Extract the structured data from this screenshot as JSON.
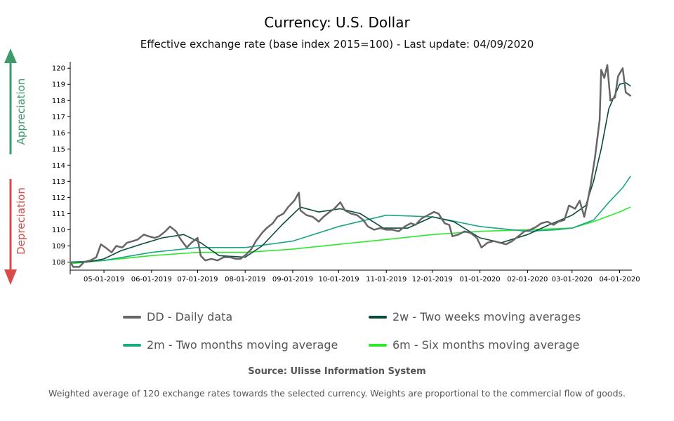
{
  "title": "Currency: U.S. Dollar",
  "subtitle": "Effective exchange rate (base index 2015=100) - Last update: 04/09/2020",
  "side_labels": {
    "appreciation": "Appreciation",
    "depreciation": "Depreciation"
  },
  "colors": {
    "appreciation": "#3d9a6a",
    "depreciation": "#d94b4b",
    "daily": "#666666",
    "two_weeks": "#0b4a3e",
    "two_months": "#1aa784",
    "six_months": "#2de82d"
  },
  "legend": [
    {
      "label": "DD - Daily data",
      "color": "#666666"
    },
    {
      "label": "2w - Two weeks moving averages",
      "color": "#0b4a3e"
    },
    {
      "label": "2m - Two months moving average",
      "color": "#1aa784"
    },
    {
      "label": "6m - Six months moving average",
      "color": "#2de82d"
    }
  ],
  "source": "Source: Ulisse Information System",
  "footnote": "Weighted average of 120 exchange rates towards the selected currency. Weights are proportional to the commercial flow of goods.",
  "chart_data": {
    "type": "line",
    "title": "Currency: U.S. Dollar",
    "subtitle": "Effective exchange rate (base index 2015=100) - Last update: 04/09/2020",
    "xlim": [
      "2019-04-09",
      "2020-04-09"
    ],
    "ylim": [
      107.5,
      120.4
    ],
    "yticks": [
      108,
      109,
      110,
      111,
      112,
      113,
      114,
      115,
      116,
      117,
      118,
      119,
      120
    ],
    "xticks": [
      {
        "date": "2019-05-01",
        "label": "05-01-2019"
      },
      {
        "date": "2019-06-01",
        "label": "06-01-2019"
      },
      {
        "date": "2019-07-01",
        "label": "07-01-2019"
      },
      {
        "date": "2019-08-01",
        "label": "08-01-2019"
      },
      {
        "date": "2019-09-01",
        "label": "09-01-2019"
      },
      {
        "date": "2019-10-01",
        "label": "10-01-2019"
      },
      {
        "date": "2019-11-01",
        "label": "11-01-2019"
      },
      {
        "date": "2019-12-01",
        "label": "12-01-2019"
      },
      {
        "date": "2020-01-01",
        "label": "01-01-2020"
      },
      {
        "date": "2020-02-01",
        "label": "02-01-2020"
      },
      {
        "date": "2020-03-01",
        "label": "03-01-2020"
      },
      {
        "date": "2020-04-01",
        "label": "04-01-2020"
      }
    ],
    "grid": false,
    "legend_position": "bottom",
    "series": [
      {
        "name": "DD - Daily data",
        "color": "#666666",
        "width": 2.5,
        "points": [
          [
            "2019-04-09",
            108.0
          ],
          [
            "2019-04-11",
            107.7
          ],
          [
            "2019-04-15",
            107.7
          ],
          [
            "2019-04-18",
            108.0
          ],
          [
            "2019-04-22",
            108.1
          ],
          [
            "2019-04-26",
            108.3
          ],
          [
            "2019-04-29",
            109.1
          ],
          [
            "2019-05-02",
            108.9
          ],
          [
            "2019-05-06",
            108.6
          ],
          [
            "2019-05-09",
            109.0
          ],
          [
            "2019-05-13",
            108.9
          ],
          [
            "2019-05-16",
            109.2
          ],
          [
            "2019-05-20",
            109.3
          ],
          [
            "2019-05-23",
            109.4
          ],
          [
            "2019-05-27",
            109.7
          ],
          [
            "2019-05-30",
            109.6
          ],
          [
            "2019-06-03",
            109.5
          ],
          [
            "2019-06-06",
            109.6
          ],
          [
            "2019-06-10",
            109.9
          ],
          [
            "2019-06-13",
            110.2
          ],
          [
            "2019-06-17",
            109.9
          ],
          [
            "2019-06-20",
            109.4
          ],
          [
            "2019-06-24",
            108.9
          ],
          [
            "2019-06-27",
            109.2
          ],
          [
            "2019-07-01",
            109.5
          ],
          [
            "2019-07-03",
            108.4
          ],
          [
            "2019-07-06",
            108.1
          ],
          [
            "2019-07-10",
            108.2
          ],
          [
            "2019-07-14",
            108.1
          ],
          [
            "2019-07-18",
            108.3
          ],
          [
            "2019-07-22",
            108.3
          ],
          [
            "2019-07-26",
            108.2
          ],
          [
            "2019-07-29",
            108.2
          ],
          [
            "2019-08-02",
            108.5
          ],
          [
            "2019-08-05",
            108.8
          ],
          [
            "2019-08-08",
            109.3
          ],
          [
            "2019-08-12",
            109.8
          ],
          [
            "2019-08-15",
            110.1
          ],
          [
            "2019-08-19",
            110.4
          ],
          [
            "2019-08-22",
            110.8
          ],
          [
            "2019-08-26",
            111.0
          ],
          [
            "2019-08-29",
            111.4
          ],
          [
            "2019-09-02",
            111.8
          ],
          [
            "2019-09-05",
            112.3
          ],
          [
            "2019-09-06",
            111.2
          ],
          [
            "2019-09-10",
            110.9
          ],
          [
            "2019-09-14",
            110.8
          ],
          [
            "2019-09-18",
            110.5
          ],
          [
            "2019-09-21",
            110.8
          ],
          [
            "2019-09-25",
            111.1
          ],
          [
            "2019-09-28",
            111.3
          ],
          [
            "2019-10-02",
            111.7
          ],
          [
            "2019-10-05",
            111.2
          ],
          [
            "2019-10-09",
            111.0
          ],
          [
            "2019-10-13",
            110.9
          ],
          [
            "2019-10-17",
            110.6
          ],
          [
            "2019-10-20",
            110.2
          ],
          [
            "2019-10-24",
            110.0
          ],
          [
            "2019-10-28",
            110.1
          ],
          [
            "2019-11-01",
            110.0
          ],
          [
            "2019-11-05",
            110.0
          ],
          [
            "2019-11-09",
            109.9
          ],
          [
            "2019-11-13",
            110.2
          ],
          [
            "2019-11-17",
            110.4
          ],
          [
            "2019-11-20",
            110.3
          ],
          [
            "2019-11-24",
            110.7
          ],
          [
            "2019-11-28",
            110.9
          ],
          [
            "2019-12-02",
            111.1
          ],
          [
            "2019-12-05",
            111.0
          ],
          [
            "2019-12-09",
            110.4
          ],
          [
            "2019-12-12",
            110.3
          ],
          [
            "2019-12-14",
            109.6
          ],
          [
            "2019-12-18",
            109.7
          ],
          [
            "2019-12-22",
            109.9
          ],
          [
            "2019-12-26",
            109.8
          ],
          [
            "2019-12-30",
            109.5
          ],
          [
            "2020-01-02",
            108.9
          ],
          [
            "2020-01-06",
            109.2
          ],
          [
            "2020-01-10",
            109.3
          ],
          [
            "2020-01-14",
            109.2
          ],
          [
            "2020-01-18",
            109.1
          ],
          [
            "2020-01-22",
            109.3
          ],
          [
            "2020-01-26",
            109.6
          ],
          [
            "2020-01-30",
            109.9
          ],
          [
            "2020-02-03",
            110.0
          ],
          [
            "2020-02-07",
            110.2
          ],
          [
            "2020-02-10",
            110.4
          ],
          [
            "2020-02-14",
            110.5
          ],
          [
            "2020-02-18",
            110.3
          ],
          [
            "2020-02-21",
            110.5
          ],
          [
            "2020-02-25",
            110.6
          ],
          [
            "2020-02-28",
            111.5
          ],
          [
            "2020-03-03",
            111.3
          ],
          [
            "2020-03-06",
            111.8
          ],
          [
            "2020-03-09",
            110.8
          ],
          [
            "2020-03-11",
            111.7
          ],
          [
            "2020-03-13",
            112.7
          ],
          [
            "2020-03-16",
            114.5
          ],
          [
            "2020-03-19",
            116.8
          ],
          [
            "2020-03-20",
            119.9
          ],
          [
            "2020-03-22",
            119.4
          ],
          [
            "2020-03-24",
            120.2
          ],
          [
            "2020-03-26",
            118.0
          ],
          [
            "2020-03-29",
            118.2
          ],
          [
            "2020-03-31",
            119.5
          ],
          [
            "2020-04-03",
            120.0
          ],
          [
            "2020-04-05",
            118.5
          ],
          [
            "2020-04-08",
            118.3
          ]
        ]
      },
      {
        "name": "2w - Two weeks moving averages",
        "color": "#0b4a3e",
        "width": 1.6,
        "points": [
          [
            "2019-04-09",
            108.0
          ],
          [
            "2019-04-20",
            108.0
          ],
          [
            "2019-05-01",
            108.2
          ],
          [
            "2019-05-12",
            108.7
          ],
          [
            "2019-05-25",
            109.1
          ],
          [
            "2019-06-08",
            109.5
          ],
          [
            "2019-06-22",
            109.7
          ],
          [
            "2019-07-03",
            109.2
          ],
          [
            "2019-07-15",
            108.4
          ],
          [
            "2019-08-01",
            108.3
          ],
          [
            "2019-08-12",
            109.0
          ],
          [
            "2019-08-25",
            110.3
          ],
          [
            "2019-09-06",
            111.4
          ],
          [
            "2019-09-18",
            111.1
          ],
          [
            "2019-10-02",
            111.3
          ],
          [
            "2019-10-15",
            111.0
          ],
          [
            "2019-10-30",
            110.1
          ],
          [
            "2019-11-15",
            110.1
          ],
          [
            "2019-12-01",
            110.8
          ],
          [
            "2019-12-15",
            110.5
          ],
          [
            "2020-01-01",
            109.5
          ],
          [
            "2020-01-15",
            109.2
          ],
          [
            "2020-02-01",
            109.7
          ],
          [
            "2020-02-15",
            110.3
          ],
          [
            "2020-03-01",
            110.9
          ],
          [
            "2020-03-10",
            111.5
          ],
          [
            "2020-03-15",
            113.0
          ],
          [
            "2020-03-20",
            115.0
          ],
          [
            "2020-03-25",
            117.5
          ],
          [
            "2020-04-01",
            119.0
          ],
          [
            "2020-04-05",
            119.1
          ],
          [
            "2020-04-08",
            118.9
          ]
        ]
      },
      {
        "name": "2m - Two months moving average",
        "color": "#1aa784",
        "width": 1.6,
        "points": [
          [
            "2019-04-09",
            108.0
          ],
          [
            "2019-05-01",
            108.1
          ],
          [
            "2019-06-01",
            108.6
          ],
          [
            "2019-07-01",
            108.9
          ],
          [
            "2019-08-01",
            108.9
          ],
          [
            "2019-09-01",
            109.3
          ],
          [
            "2019-10-01",
            110.2
          ],
          [
            "2019-11-01",
            110.9
          ],
          [
            "2019-12-01",
            110.8
          ],
          [
            "2020-01-01",
            110.2
          ],
          [
            "2020-02-01",
            109.9
          ],
          [
            "2020-02-20",
            110.0
          ],
          [
            "2020-03-01",
            110.1
          ],
          [
            "2020-03-15",
            110.6
          ],
          [
            "2020-03-25",
            111.7
          ],
          [
            "2020-04-03",
            112.6
          ],
          [
            "2020-04-08",
            113.3
          ]
        ]
      },
      {
        "name": "6m - Six months moving average",
        "color": "#2de82d",
        "width": 1.6,
        "points": [
          [
            "2019-04-09",
            107.9
          ],
          [
            "2019-05-01",
            108.1
          ],
          [
            "2019-06-01",
            108.4
          ],
          [
            "2019-07-01",
            108.6
          ],
          [
            "2019-08-01",
            108.6
          ],
          [
            "2019-09-01",
            108.8
          ],
          [
            "2019-10-01",
            109.1
          ],
          [
            "2019-11-01",
            109.4
          ],
          [
            "2019-12-01",
            109.7
          ],
          [
            "2020-01-01",
            109.9
          ],
          [
            "2020-02-01",
            110.0
          ],
          [
            "2020-03-01",
            110.1
          ],
          [
            "2020-03-15",
            110.5
          ],
          [
            "2020-04-01",
            111.1
          ],
          [
            "2020-04-08",
            111.4
          ]
        ]
      }
    ]
  }
}
